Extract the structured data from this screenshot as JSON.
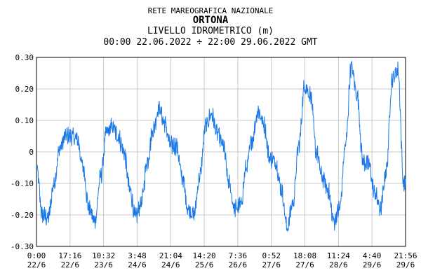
{
  "header": {
    "network": "RETE MAREOGRAFICA NAZIONALE",
    "station": "ORTONA",
    "measure": "LIVELLO IDROMETRICO (m)",
    "period": "00:00 22.06.2022 ÷ 22:00 29.06.2022 GMT"
  },
  "chart_data": {
    "type": "line",
    "title": "ORTONA",
    "ylabel": "LIVELLO IDROMETRICO (m)",
    "ylim": [
      -0.3,
      0.3
    ],
    "yticks": [
      "0.30",
      "0.20",
      "0.10",
      "0",
      "-0.10",
      "-0.20",
      "-0.30"
    ],
    "xlim": [
      "00:00 22/6",
      "21:56 29/6"
    ],
    "xticks": [
      {
        "time": "0:00",
        "date": "22/6"
      },
      {
        "time": "17:16",
        "date": "22/6"
      },
      {
        "time": "10:32",
        "date": "23/6"
      },
      {
        "time": "3:48",
        "date": "24/6"
      },
      {
        "time": "21:04",
        "date": "24/6"
      },
      {
        "time": "14:20",
        "date": "25/6"
      },
      {
        "time": "7:36",
        "date": "26/6"
      },
      {
        "time": "0:52",
        "date": "27/6"
      },
      {
        "time": "18:08",
        "date": "27/6"
      },
      {
        "time": "11:24",
        "date": "28/6"
      },
      {
        "time": "4:40",
        "date": "29/6"
      },
      {
        "time": "21:56",
        "date": "29/6"
      }
    ],
    "grid": true,
    "line_color": "#1a78e6",
    "series": [
      {
        "x_hours": [
          0,
          3,
          6,
          9,
          12,
          15,
          18,
          21,
          24,
          27,
          30,
          33,
          36,
          39,
          42,
          45,
          48,
          51,
          54,
          57,
          60,
          63,
          66,
          69,
          72,
          75,
          78,
          81,
          84,
          87,
          90,
          93,
          96,
          99,
          102,
          105,
          108,
          111,
          114,
          117,
          120,
          123,
          126,
          129,
          132,
          135,
          138,
          141,
          144,
          147,
          150,
          153,
          156,
          159,
          162,
          165,
          168,
          171,
          174,
          177,
          180,
          183,
          186,
          189
        ],
        "values": [
          -0.05,
          -0.2,
          -0.21,
          -0.1,
          0.01,
          0.05,
          0.05,
          0.04,
          -0.05,
          -0.18,
          -0.22,
          -0.08,
          0.06,
          0.08,
          0.05,
          0.0,
          -0.12,
          -0.21,
          -0.16,
          -0.03,
          0.07,
          0.14,
          0.09,
          0.02,
          0.02,
          -0.08,
          -0.18,
          -0.2,
          -0.08,
          0.08,
          0.12,
          0.06,
          0.02,
          -0.1,
          -0.18,
          -0.17,
          -0.05,
          0.04,
          0.13,
          0.09,
          -0.02,
          -0.03,
          -0.12,
          -0.24,
          -0.16,
          0.02,
          0.21,
          0.18,
          0.0,
          -0.08,
          -0.12,
          -0.22,
          -0.18,
          0.02,
          0.27,
          0.18,
          -0.03,
          -0.04,
          -0.13,
          -0.18,
          -0.06,
          0.23,
          0.26,
          -0.1
        ]
      }
    ]
  }
}
